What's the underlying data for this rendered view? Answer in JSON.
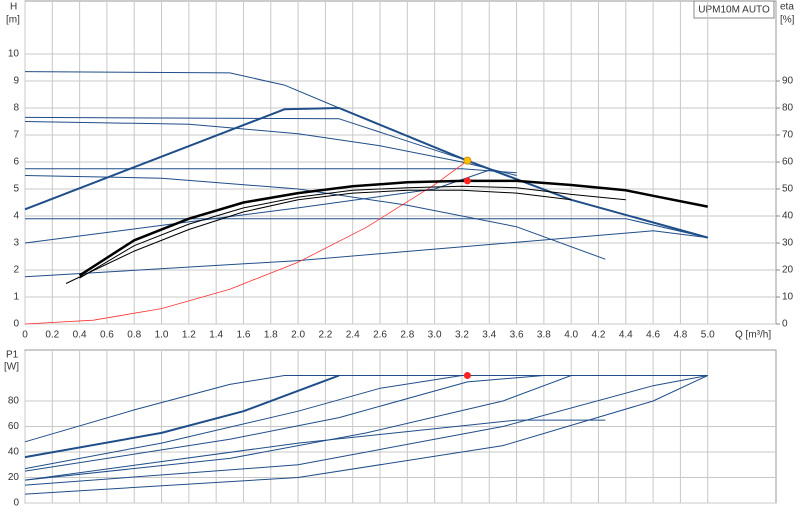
{
  "chart_data": [
    {
      "type": "line",
      "box_label": "UPM10M AUTO",
      "y_label": "H",
      "y_unit": "[m]",
      "y2_label": "eta",
      "y2_unit": "[%]",
      "x_label": "Q [m³/h]",
      "xlim": [
        0,
        5.5
      ],
      "ylim": [
        0,
        12
      ],
      "y2lim": [
        0,
        120
      ],
      "xticks": [
        0,
        0.2,
        0.4,
        0.6,
        0.8,
        {
          "value": 1,
          "label": "1.0"
        },
        1.2,
        1.4,
        1.6,
        1.8,
        {
          "value": 2,
          "label": "2.0"
        },
        2.2,
        2.4,
        2.6,
        2.8,
        {
          "value": 3,
          "label": "3.0"
        },
        3.2,
        3.4,
        3.6,
        3.8,
        {
          "value": 4,
          "label": "4.0"
        },
        4.2,
        4.4,
        4.6,
        4.8,
        {
          "value": 5,
          "label": "5.0"
        }
      ],
      "yticks": [
        0,
        1,
        2,
        3,
        4,
        5,
        6,
        7,
        8,
        9,
        10
      ],
      "y2ticks": [
        0,
        10,
        20,
        30,
        40,
        50,
        60,
        70,
        80,
        90
      ],
      "series": [
        {
          "color": "#1f4e89",
          "width": 1,
          "x": [
            0,
            1.5,
            1.9,
            2.3
          ],
          "values": [
            9.35,
            9.3,
            8.85,
            8.0
          ]
        },
        {
          "color": "#1f4e89",
          "width": 2,
          "x": [
            0,
            1.9,
            2.3,
            3.24,
            4.0,
            5.0
          ],
          "values": [
            4.25,
            7.95,
            8.0,
            6.05,
            4.6,
            3.2
          ]
        },
        {
          "color": "#1f4e89",
          "width": 1,
          "x": [
            0,
            2.3,
            3.24
          ],
          "values": [
            7.65,
            7.6,
            6.05
          ]
        },
        {
          "color": "#1f4e89",
          "width": 1,
          "x": [
            0,
            1.2,
            2.0,
            2.6,
            3.2,
            3.6
          ],
          "values": [
            7.5,
            7.4,
            7.05,
            6.6,
            6.0,
            5.5
          ]
        },
        {
          "color": "#1f4e89",
          "width": 1,
          "x": [
            0,
            3.2,
            3.6
          ],
          "values": [
            5.75,
            5.75,
            5.6
          ]
        },
        {
          "color": "#1f4e89",
          "width": 1,
          "x": [
            0,
            1.0,
            2.0,
            2.8,
            3.6,
            4.25
          ],
          "values": [
            5.5,
            5.4,
            5.0,
            4.4,
            3.6,
            2.4
          ]
        },
        {
          "color": "#1f4e89",
          "width": 1,
          "x": [
            0,
            4.4,
            5.0
          ],
          "values": [
            3.9,
            3.9,
            3.2
          ]
        },
        {
          "color": "#1f4e89",
          "width": 1,
          "x": [
            0,
            1.0,
            2.0,
            3.0,
            3.4
          ],
          "values": [
            3.0,
            3.65,
            4.3,
            5.0,
            5.7
          ]
        },
        {
          "color": "#1f4e89",
          "width": 1,
          "x": [
            0,
            2.0,
            4.6,
            5.0
          ],
          "values": [
            1.75,
            2.35,
            3.45,
            3.2
          ]
        },
        {
          "color": "#ff3030",
          "width": 0.8,
          "x": [
            0,
            0.5,
            1.0,
            1.5,
            2.0,
            2.5,
            3.0,
            3.24
          ],
          "values": [
            0,
            0.14,
            0.57,
            1.29,
            2.29,
            3.58,
            5.16,
            6.05
          ]
        },
        {
          "color": "#000000",
          "width": 2.5,
          "axis": "y2",
          "x": [
            0.4,
            0.8,
            1.2,
            1.6,
            2.0,
            2.4,
            2.8,
            3.2,
            3.6,
            4.0,
            4.4,
            4.6,
            5.0
          ],
          "values": [
            18,
            31,
            39,
            45,
            48.5,
            51,
            52.5,
            53,
            53,
            51.5,
            49.5,
            47.5,
            43.5
          ]
        },
        {
          "color": "#000000",
          "width": 1,
          "axis": "y2",
          "x": [
            0.4,
            0.8,
            1.2,
            1.6,
            2.0,
            2.4,
            2.8,
            3.2,
            3.6,
            4.0,
            4.4
          ],
          "values": [
            17,
            29,
            37,
            43,
            47,
            49.5,
            50.5,
            51,
            50.5,
            48,
            46
          ]
        },
        {
          "color": "#000000",
          "width": 1,
          "axis": "y2",
          "x": [
            0.3,
            0.8,
            1.2,
            1.6,
            2.0,
            2.4,
            2.8,
            3.2,
            3.6,
            4.0
          ],
          "values": [
            15,
            27,
            35,
            41.5,
            46,
            48.5,
            49.5,
            49.5,
            48.5,
            46
          ]
        }
      ],
      "points": [
        {
          "color": "#ffc000",
          "x": 3.24,
          "y": 6.05
        },
        {
          "color": "#ff2020",
          "x": 3.24,
          "y": 5.3
        }
      ]
    },
    {
      "type": "line",
      "y_label": "P1",
      "y_unit": "[W]",
      "xlim": [
        0,
        5.5
      ],
      "ylim": [
        0,
        120
      ],
      "xticks": [
        0,
        0.2,
        0.4,
        0.6,
        0.8,
        1,
        1.2,
        1.4,
        1.6,
        1.8,
        2,
        2.2,
        2.4,
        2.6,
        2.8,
        3,
        3.2,
        3.4,
        3.6,
        3.8,
        4,
        4.2,
        4.4,
        4.6,
        4.8,
        5
      ],
      "yticks": [
        0,
        20,
        40,
        60,
        80
      ],
      "series": [
        {
          "color": "#1f4e89",
          "width": 1,
          "x": [
            0,
            0.8,
            1.5,
            1.9,
            5.0
          ],
          "values": [
            48,
            73,
            93,
            100,
            100
          ]
        },
        {
          "color": "#1f4e89",
          "width": 2,
          "x": [
            0,
            1.0,
            1.6,
            2.0,
            2.3
          ],
          "values": [
            36,
            55,
            72,
            88,
            100
          ]
        },
        {
          "color": "#1f4e89",
          "width": 1,
          "x": [
            0,
            1.0,
            2.0,
            2.6,
            3.2
          ],
          "values": [
            27,
            47,
            72,
            90,
            100
          ]
        },
        {
          "color": "#1f4e89",
          "width": 1,
          "x": [
            0,
            1.5,
            2.3,
            3.24,
            3.8
          ],
          "values": [
            25,
            50,
            67,
            95,
            100
          ]
        },
        {
          "color": "#1f4e89",
          "width": 1,
          "x": [
            0,
            1.5,
            2.5,
            3.5,
            4.0
          ],
          "values": [
            18,
            35,
            55,
            80,
            100
          ]
        },
        {
          "color": "#1f4e89",
          "width": 1,
          "x": [
            0,
            2.0,
            3.6,
            4.25
          ],
          "values": [
            18,
            47,
            65,
            65
          ]
        },
        {
          "color": "#1f4e89",
          "width": 1,
          "x": [
            0,
            2.0,
            3.5,
            4.6,
            5.0
          ],
          "values": [
            14,
            30,
            60,
            92,
            100
          ]
        },
        {
          "color": "#1f4e89",
          "width": 1,
          "x": [
            0,
            2.0,
            3.5,
            4.6,
            5.0
          ],
          "values": [
            7,
            20,
            45,
            80,
            100
          ]
        }
      ],
      "points": [
        {
          "color": "#ff2020",
          "x": 3.24,
          "y": 100
        }
      ]
    }
  ]
}
